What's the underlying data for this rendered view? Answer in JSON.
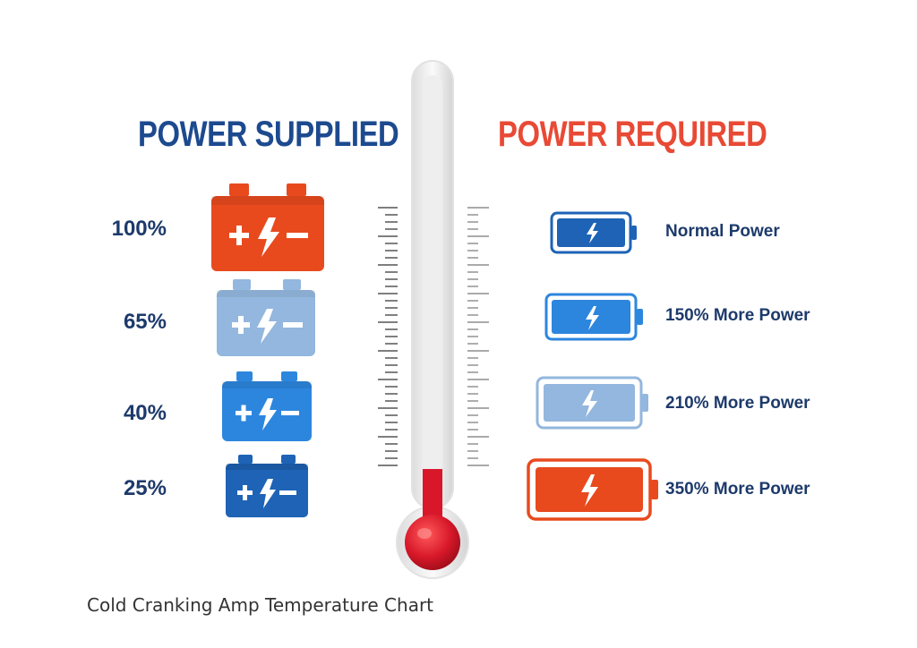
{
  "supplied": {
    "title": "POWER SUPPLIED",
    "levels": [
      {
        "label": "100%",
        "color": "#e84a1e"
      },
      {
        "label": "65%",
        "color": "#93b7de"
      },
      {
        "label": "40%",
        "color": "#2d86de"
      },
      {
        "label": "25%",
        "color": "#1e63b5"
      }
    ]
  },
  "required": {
    "title": "POWER REQUIRED",
    "items": [
      {
        "label": "Normal Power",
        "color": "#1e63b5"
      },
      {
        "label": "150% More Power",
        "color": "#2d86de"
      },
      {
        "label": "210% More Power",
        "color": "#93b7de"
      },
      {
        "label": "350% More Power",
        "color": "#e84a1e"
      }
    ]
  },
  "thermometer": {
    "mercury_color": "#d8182a"
  },
  "caption": "Cold Cranking Amp Temperature Chart",
  "icons": [
    "car-battery-icon",
    "battery-cell-icon",
    "lightning-bolt-icon",
    "thermometer-icon"
  ]
}
